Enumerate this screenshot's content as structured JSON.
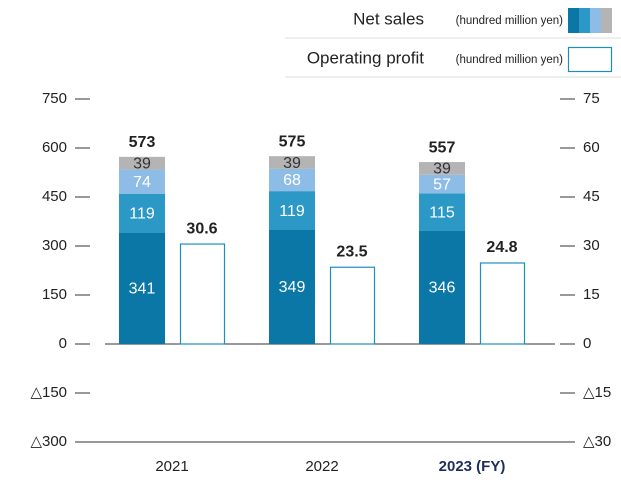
{
  "chart_data": {
    "type": "stacked-bar-with-bar",
    "categories": [
      "2021",
      "2022",
      "2023 (FY)"
    ],
    "highlight_category": 2,
    "highlight_color": "#1f2d5c",
    "ylim": [
      -300,
      750
    ],
    "yticks": [
      {
        "value": -300,
        "label": "△300"
      },
      {
        "value": -150,
        "label": "△150"
      },
      0,
      150,
      300,
      450,
      600,
      750
    ],
    "y2lim": [
      -30,
      75
    ],
    "y2ticks": [
      {
        "value": -30,
        "label": "△30"
      },
      {
        "value": -15,
        "label": "△15"
      },
      0,
      15,
      30,
      45,
      60,
      75
    ],
    "series": [
      {
        "name": "Net sales",
        "unit": "(hundred million yen)",
        "segments": [
          {
            "color": "#0a77a6",
            "label_color": "#ffffff",
            "values": [
              341,
              349,
              346
            ]
          },
          {
            "color": "#2c98c6",
            "label_color": "#ffffff",
            "values": [
              119,
              119,
              115
            ]
          },
          {
            "color": "#8dbde6",
            "label_color": "#ffffff",
            "values": [
              74,
              68,
              57
            ]
          },
          {
            "color": "#b4b4b4",
            "label_color": "#333333",
            "values": [
              39,
              39,
              39
            ]
          }
        ],
        "totals": [
          573,
          575,
          557
        ]
      },
      {
        "name": "Operating profit",
        "unit": "(hundred million yen)",
        "axis": "y2",
        "color": "#1a8fbe",
        "values": [
          30.6,
          23.5,
          24.8
        ]
      }
    ]
  }
}
